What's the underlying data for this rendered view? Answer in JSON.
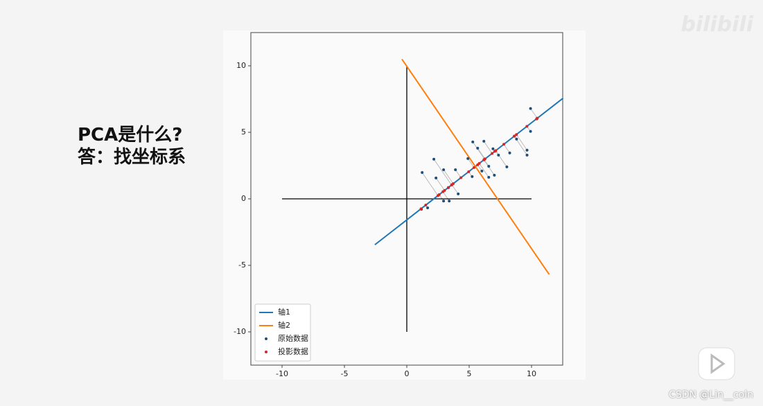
{
  "slide": {
    "lines": [
      "PCA是什么?",
      "答：找坐标系"
    ]
  },
  "watermarks": [
    "bilibili",
    "CSDN @Lin__coln"
  ],
  "chart_data": {
    "type": "scatter",
    "xlim": [
      -12.5,
      12.5
    ],
    "ylim": [
      -12.5,
      12.5
    ],
    "xticks": [
      -10,
      -5,
      0,
      5,
      10
    ],
    "yticks": [
      -10,
      -5,
      0,
      5,
      10
    ],
    "legend": "lower left",
    "series": [
      {
        "mode": "line",
        "color": "#000000",
        "x": [
          -10,
          10
        ],
        "y": [
          0,
          0
        ]
      },
      {
        "mode": "line",
        "color": "#000000",
        "x": [
          0,
          0
        ],
        "y": [
          -10,
          10
        ]
      },
      {
        "name": "轴1",
        "mode": "line",
        "color": "#1f77b4",
        "x": [
          -2.56,
          12.53
        ],
        "y": [
          -3.45,
          7.57
        ]
      },
      {
        "name": "轴2",
        "mode": "line",
        "color": "#ff7f0e",
        "x": [
          -0.39,
          11.42
        ],
        "y": [
          10.5,
          -5.69
        ]
      },
      {
        "name": "原始数据",
        "mode": "scatter",
        "color": "#1f4e79",
        "x": [
          1.23,
          2.17,
          2.95,
          2.34,
          3.9,
          3.34,
          1.17,
          1.67,
          2.95,
          3.4,
          4.12,
          4.9,
          5.29,
          5.68,
          6.18,
          5.24,
          6.02,
          6.57,
          6.57,
          7.02,
          6.91,
          7.35,
          8.02,
          8.25,
          8.8,
          9.64,
          9.92,
          9.64,
          10.42,
          9.92
        ],
        "y": [
          1.98,
          2.98,
          2.19,
          1.57,
          2.19,
          0.84,
          -0.78,
          -0.68,
          -0.16,
          -0.16,
          0.37,
          3.03,
          4.28,
          3.81,
          4.33,
          1.67,
          2.09,
          2.45,
          1.62,
          1.78,
          3.76,
          3.29,
          2.4,
          3.45,
          4.49,
          3.29,
          6.79,
          3.66,
          6.01,
          5.07
        ]
      },
      {
        "name": "投影数据",
        "mode": "scatter",
        "color": "#d62728",
        "x": [
          2.5,
          3.59,
          3.72,
          3.03,
          4.34,
          3.33,
          1.14,
          1.52,
          2.6,
          2.9,
          3.61,
          5.39,
          6.24,
          6.27,
          6.84,
          4.96,
          5.68,
          6.2,
          5.81,
          6.18,
          7.05,
          7.12,
          7.13,
          7.78,
          8.63,
          8.61,
          10.46,
          8.79,
          10.41,
          9.63
        ],
        "y": [
          0.24,
          1.04,
          1.14,
          0.63,
          1.59,
          0.85,
          -0.75,
          -0.47,
          0.32,
          0.54,
          1.06,
          2.35,
          2.98,
          3.0,
          3.41,
          2.04,
          2.56,
          2.95,
          2.66,
          2.93,
          3.57,
          3.62,
          3.62,
          4.1,
          4.72,
          4.71,
          6.06,
          4.83,
          6.02,
          5.45
        ]
      }
    ]
  }
}
